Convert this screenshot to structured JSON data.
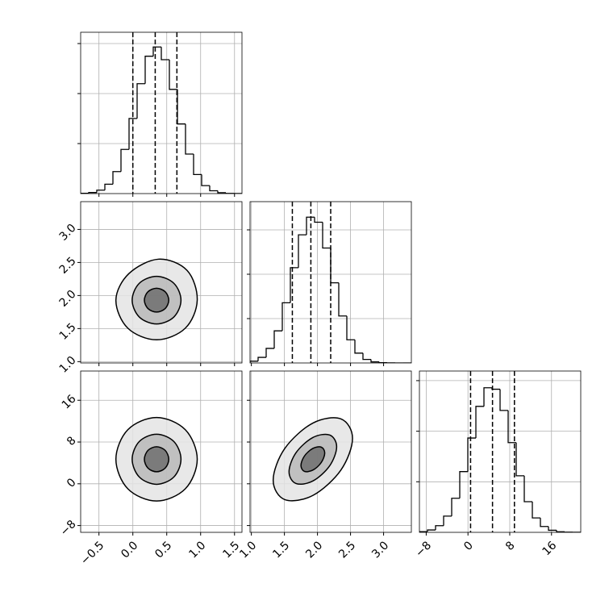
{
  "chart_data": [
    {
      "type": "histogram",
      "grid": true,
      "xlabels": false,
      "ylabels": false,
      "bins": [
        -0.77,
        -0.651,
        -0.532,
        -0.413,
        -0.294,
        -0.175,
        -0.056,
        0.063,
        0.182,
        0.301,
        0.42,
        0.539,
        0.658,
        0.777,
        0.896,
        1.015,
        1.134,
        1.253,
        1.372,
        1.491,
        1.61
      ],
      "counts": [
        6,
        21,
        68,
        188,
        439,
        883,
        1502,
        2198,
        2747,
        2932,
        2677,
        2084,
        1392,
        790,
        381,
        159,
        56,
        17,
        4,
        1
      ],
      "quantiles": [
        0.0,
        0.33,
        0.65
      ],
      "xlim": [
        -0.77,
        1.61
      ],
      "ylim": [
        0,
        3226
      ],
      "xticks": [
        {
          "value": -0.5,
          "label": "−0.5"
        },
        {
          "value": 0,
          "label": "0.0"
        },
        0.5,
        {
          "value": 1,
          "label": "1.0"
        },
        1.5
      ],
      "yticks": [
        1000,
        2000,
        3000
      ]
    },
    {
      "type": "contour",
      "grid": true,
      "xlabels": false,
      "ylabels": true,
      "xlim": [
        -0.77,
        1.61
      ],
      "ylim": [
        0.98,
        3.42
      ],
      "xticks": [
        {
          "value": -0.5,
          "label": "−0.5"
        },
        {
          "value": 0,
          "label": "0.0"
        },
        0.5,
        {
          "value": 1,
          "label": "1.0"
        },
        1.5
      ],
      "yticks": [
        {
          "value": 1,
          "label": "1.0"
        },
        1.5,
        {
          "value": 2,
          "label": "2.0"
        },
        2.5,
        {
          "value": 3,
          "label": "3.0"
        }
      ],
      "contours": [
        {
          "x": [
            0.95,
            0.8,
            0.38,
            -0.06,
            -0.25,
            -0.074,
            0.35,
            0.774
          ],
          "y": [
            1.93,
            2.38,
            2.55,
            2.33,
            1.93,
            1.506,
            1.33,
            1.506
          ]
        },
        {
          "x": [
            0.71,
            0.605,
            0.35,
            0.095,
            -0.01,
            0.095,
            0.35,
            0.605
          ],
          "y": [
            1.93,
            2.185,
            2.29,
            2.185,
            1.93,
            1.675,
            1.57,
            1.675
          ]
        },
        {
          "x": [
            0.53,
            0.477,
            0.35,
            0.223,
            0.17,
            0.223,
            0.35,
            0.477
          ],
          "y": [
            1.93,
            2.057,
            2.11,
            2.057,
            1.93,
            1.803,
            1.75,
            1.803
          ]
        }
      ]
    },
    {
      "type": "histogram",
      "grid": true,
      "xlabels": false,
      "ylabels": false,
      "bins": [
        0.98,
        1.102,
        1.224,
        1.346,
        1.468,
        1.59,
        1.712,
        1.834,
        1.956,
        2.078,
        2.2,
        2.322,
        2.444,
        2.566,
        2.688,
        2.81,
        2.932,
        3.054,
        3.176,
        3.298,
        3.42
      ],
      "counts": [
        40,
        126,
        328,
        724,
        1357,
        2148,
        2889,
        3286,
        3173,
        2591,
        1807,
        1059,
        523,
        222,
        79,
        24,
        6,
        1,
        0,
        0
      ],
      "quantiles": [
        1.62,
        1.9,
        2.2
      ],
      "xlim": [
        0.98,
        3.42
      ],
      "ylim": [
        0,
        3636
      ],
      "xticks": [
        {
          "value": 1,
          "label": "1.0"
        },
        1.5,
        {
          "value": 2,
          "label": "2.0"
        },
        2.5,
        {
          "value": 3,
          "label": "3.0"
        }
      ],
      "yticks": [
        1000,
        2000,
        3000
      ]
    },
    {
      "type": "contour",
      "grid": true,
      "xlabels": true,
      "ylabels": true,
      "xlim": [
        -0.77,
        1.61
      ],
      "ylim": [
        -9.3,
        21.6
      ],
      "xticks": [
        {
          "value": -0.5,
          "label": "−0.5"
        },
        {
          "value": 0,
          "label": "0.0"
        },
        0.5,
        {
          "value": 1,
          "label": "1.0"
        },
        1.5
      ],
      "yticks": [
        {
          "value": -8,
          "label": "−8"
        },
        0,
        8,
        16
      ],
      "contours": [
        {
          "x": [
            0.95,
            0.774,
            0.35,
            -0.074,
            -0.25,
            -0.074,
            0.35,
            0.774
          ],
          "y": [
            4.7,
            10.36,
            12.7,
            10.36,
            4.7,
            -0.96,
            -3.3,
            -0.96
          ]
        },
        {
          "x": [
            0.71,
            0.605,
            0.35,
            0.095,
            -0.01,
            0.095,
            0.35,
            0.605
          ],
          "y": [
            4.7,
            8.1,
            9.5,
            8.1,
            4.7,
            1.3,
            -0.1,
            1.3
          ]
        },
        {
          "x": [
            0.53,
            0.477,
            0.35,
            0.223,
            0.17,
            0.223,
            0.35,
            0.477
          ],
          "y": [
            4.7,
            6.4,
            7.1,
            6.4,
            4.7,
            3.0,
            2.3,
            3.0
          ]
        }
      ]
    },
    {
      "type": "contour",
      "grid": true,
      "xlabels": true,
      "ylabels": false,
      "xlim": [
        0.98,
        3.42
      ],
      "ylim": [
        -9.3,
        21.6
      ],
      "xticks": [
        {
          "value": 1,
          "label": "1.0"
        },
        1.5,
        {
          "value": 2,
          "label": "2.0"
        },
        2.5,
        {
          "value": 3,
          "label": "3.0"
        }
      ],
      "yticks": [
        {
          "value": -8,
          "label": "−8"
        },
        0,
        8,
        16
      ],
      "contours": [
        {
          "x": [
            2.53,
            2.354,
            1.93,
            1.506,
            1.33,
            1.506,
            1.93,
            2.354
          ],
          "y": [
            8.7,
            12.43,
            11.63,
            6.77,
            0.7,
            -3.03,
            -2.23,
            2.63
          ]
        },
        {
          "x": [
            2.29,
            2.185,
            1.93,
            1.675,
            1.57,
            1.675,
            1.93,
            2.185
          ],
          "y": [
            7.1,
            9.34,
            8.86,
            5.94,
            2.3,
            0.06,
            0.54,
            3.46
          ]
        },
        {
          "x": [
            2.11,
            2.057,
            1.93,
            1.803,
            1.75,
            1.803,
            1.93,
            2.057
          ],
          "y": [
            5.9,
            7.02,
            6.78,
            5.32,
            3.5,
            2.38,
            2.62,
            4.08
          ]
        }
      ]
    },
    {
      "type": "histogram",
      "grid": true,
      "xlabels": true,
      "ylabels": false,
      "bins": [
        -9.3,
        -7.755,
        -6.21,
        -4.665,
        -3.12,
        -1.575,
        -0.03,
        1.515,
        3.06,
        4.605,
        6.15,
        7.695,
        9.24,
        10.785,
        12.33,
        13.875,
        15.42,
        16.965,
        18.51,
        20.055,
        21.6
      ],
      "counts": [
        14,
        47,
        132,
        321,
        674,
        1201,
        1865,
        2491,
        2859,
        2830,
        2410,
        1775,
        1119,
        606,
        285,
        116,
        41,
        12,
        3,
        1
      ],
      "quantiles": [
        0.5,
        4.7,
        8.9
      ],
      "xlim": [
        -9.3,
        21.6
      ],
      "ylim": [
        0,
        3190
      ],
      "xticks": [
        {
          "value": -8,
          "label": "−8"
        },
        0,
        8,
        16
      ],
      "yticks": [
        1000,
        2000,
        3000
      ]
    }
  ]
}
